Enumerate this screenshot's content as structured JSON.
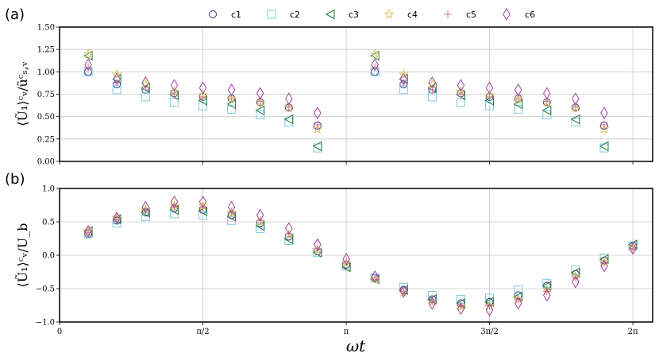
{
  "legend": [
    {
      "name": "c1",
      "marker": "circle",
      "color": "#2b2f8f"
    },
    {
      "name": "c2",
      "marker": "square",
      "color": "#7ec8e3"
    },
    {
      "name": "c3",
      "marker": "triangle-left",
      "color": "#1b7a3a"
    },
    {
      "name": "c4",
      "marker": "star",
      "color": "#e0c35a"
    },
    {
      "name": "c5",
      "marker": "plus",
      "color": "#d17a9a"
    },
    {
      "name": "c6",
      "marker": "diamond",
      "color": "#a0449e"
    }
  ],
  "xlabel": "ωt",
  "xticks": [
    "0",
    "π/2",
    "π",
    "3π/2",
    "2π"
  ],
  "chart_data": [
    {
      "panel": "(a)",
      "type": "scatter",
      "ylabel": "⟨Ũ₁⟩ᶜᵥ/ũᶜₛ,ᵥ",
      "xlim": [
        0,
        6.5
      ],
      "ylim": [
        0,
        1.5
      ],
      "yticks": [
        "0.00",
        "0.25",
        "0.50",
        "0.75",
        "1.00",
        "1.25",
        "1.50"
      ],
      "grid": true,
      "x": [
        0.314,
        0.628,
        0.942,
        1.257,
        1.571,
        1.885,
        2.199,
        2.513,
        2.827,
        3.456,
        3.77,
        4.084,
        4.398,
        4.712,
        5.027,
        5.341,
        5.655,
        5.969
      ],
      "series": [
        {
          "name": "c1",
          "values": [
            1.0,
            0.86,
            0.8,
            0.76,
            0.72,
            0.7,
            0.66,
            0.6,
            0.4,
            1.0,
            0.86,
            0.8,
            0.76,
            0.72,
            0.7,
            0.66,
            0.6,
            0.4
          ]
        },
        {
          "name": "c2",
          "values": [
            1.0,
            0.8,
            0.72,
            0.66,
            0.62,
            0.58,
            0.52,
            0.44,
            0.15,
            1.0,
            0.8,
            0.72,
            0.66,
            0.62,
            0.58,
            0.52,
            0.44,
            0.15
          ]
        },
        {
          "name": "c3",
          "values": [
            1.18,
            0.92,
            0.82,
            0.74,
            0.68,
            0.64,
            0.57,
            0.47,
            0.17,
            1.18,
            0.92,
            0.82,
            0.74,
            0.68,
            0.64,
            0.57,
            0.47,
            0.17
          ]
        },
        {
          "name": "c4",
          "values": [
            1.2,
            0.97,
            0.86,
            0.78,
            0.74,
            0.7,
            0.66,
            0.6,
            0.36,
            1.2,
            0.97,
            0.86,
            0.78,
            0.74,
            0.7,
            0.66,
            0.6,
            0.36
          ]
        },
        {
          "name": "c5",
          "values": [
            1.05,
            0.88,
            0.8,
            0.75,
            0.72,
            0.7,
            0.67,
            0.61,
            0.41,
            1.05,
            0.88,
            0.8,
            0.75,
            0.72,
            0.7,
            0.67,
            0.61,
            0.41
          ]
        },
        {
          "name": "c6",
          "values": [
            1.08,
            0.92,
            0.88,
            0.85,
            0.82,
            0.8,
            0.76,
            0.7,
            0.54,
            1.08,
            0.92,
            0.88,
            0.85,
            0.82,
            0.8,
            0.76,
            0.7,
            0.54
          ]
        }
      ]
    },
    {
      "panel": "(b)",
      "type": "scatter",
      "ylabel": "⟨Ũ₁⟩ᶜᵥ/U_b",
      "xlim": [
        0,
        6.5
      ],
      "ylim": [
        -1.0,
        1.0
      ],
      "yticks": [
        "−1.0",
        "−0.5",
        "0.0",
        "0.5",
        "1.0"
      ],
      "grid": true,
      "x": [
        0.314,
        0.628,
        0.942,
        1.257,
        1.571,
        1.885,
        2.199,
        2.513,
        2.827,
        3.142,
        3.456,
        3.77,
        4.084,
        4.398,
        4.712,
        5.027,
        5.341,
        5.655,
        5.969,
        6.283
      ],
      "series": [
        {
          "name": "c1",
          "values": [
            0.32,
            0.52,
            0.64,
            0.7,
            0.68,
            0.6,
            0.48,
            0.28,
            0.06,
            -0.14,
            -0.34,
            -0.52,
            -0.66,
            -0.72,
            -0.7,
            -0.6,
            -0.46,
            -0.28,
            -0.08,
            0.14
          ]
        },
        {
          "name": "c2",
          "values": [
            0.32,
            0.48,
            0.58,
            0.62,
            0.6,
            0.52,
            0.4,
            0.22,
            0.04,
            -0.16,
            -0.34,
            -0.48,
            -0.6,
            -0.66,
            -0.64,
            -0.52,
            -0.42,
            -0.22,
            -0.04,
            0.14
          ]
        },
        {
          "name": "c3",
          "values": [
            0.36,
            0.54,
            0.64,
            0.68,
            0.66,
            0.58,
            0.44,
            0.24,
            0.04,
            -0.18,
            -0.36,
            -0.52,
            -0.66,
            -0.72,
            -0.7,
            -0.62,
            -0.46,
            -0.26,
            -0.06,
            0.16
          ]
        },
        {
          "name": "c4",
          "values": [
            0.36,
            0.56,
            0.68,
            0.74,
            0.74,
            0.64,
            0.5,
            0.3,
            0.08,
            -0.12,
            -0.36,
            -0.56,
            -0.7,
            -0.76,
            -0.76,
            -0.66,
            -0.52,
            -0.32,
            -0.1,
            0.12
          ]
        },
        {
          "name": "c5",
          "values": [
            0.34,
            0.54,
            0.68,
            0.72,
            0.72,
            0.64,
            0.52,
            0.32,
            0.1,
            -0.1,
            -0.36,
            -0.54,
            -0.68,
            -0.76,
            -0.76,
            -0.66,
            -0.54,
            -0.34,
            -0.12,
            0.1
          ]
        },
        {
          "name": "c6",
          "values": [
            0.36,
            0.56,
            0.72,
            0.8,
            0.8,
            0.72,
            0.6,
            0.4,
            0.16,
            -0.06,
            -0.32,
            -0.54,
            -0.72,
            -0.8,
            -0.82,
            -0.72,
            -0.6,
            -0.4,
            -0.16,
            0.1
          ]
        }
      ]
    }
  ]
}
